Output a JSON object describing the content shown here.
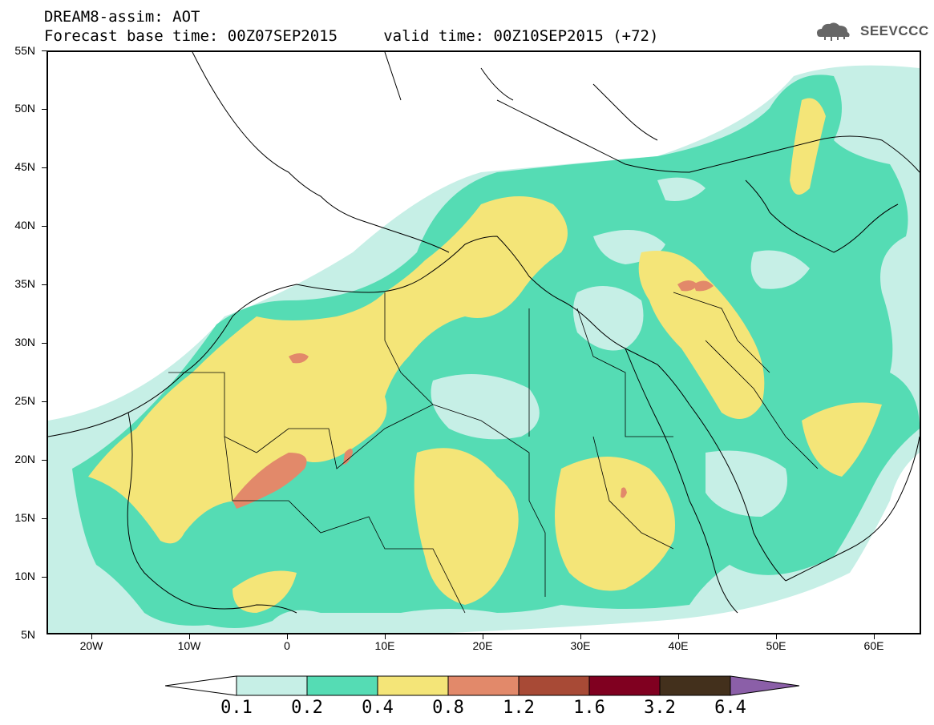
{
  "header": {
    "title": "DREAM8-assim: AOT",
    "subtitle": "Forecast base time: 00Z07SEP2015     valid time: 00Z10SEP2015 (+72)"
  },
  "logo": {
    "text": "SEEVCCC",
    "icon": "cloud-icon"
  },
  "map": {
    "lat_labels": [
      "55N",
      "50N",
      "45N",
      "40N",
      "35N",
      "30N",
      "25N",
      "20N",
      "15N",
      "10N",
      "5N"
    ],
    "lon_labels": [
      "20W",
      "10W",
      "0",
      "10E",
      "20E",
      "30E",
      "40E",
      "50E",
      "60E"
    ]
  },
  "colorbar": {
    "labels": [
      "0.1",
      "0.2",
      "0.4",
      "0.8",
      "1.2",
      "1.6",
      "3.2",
      "6.4"
    ],
    "colors": [
      "#ffffff",
      "#c6efe6",
      "#55dcb4",
      "#f4e578",
      "#e2896a",
      "#a84a36",
      "#800020",
      "#43301c",
      "#8b5fa8"
    ]
  }
}
